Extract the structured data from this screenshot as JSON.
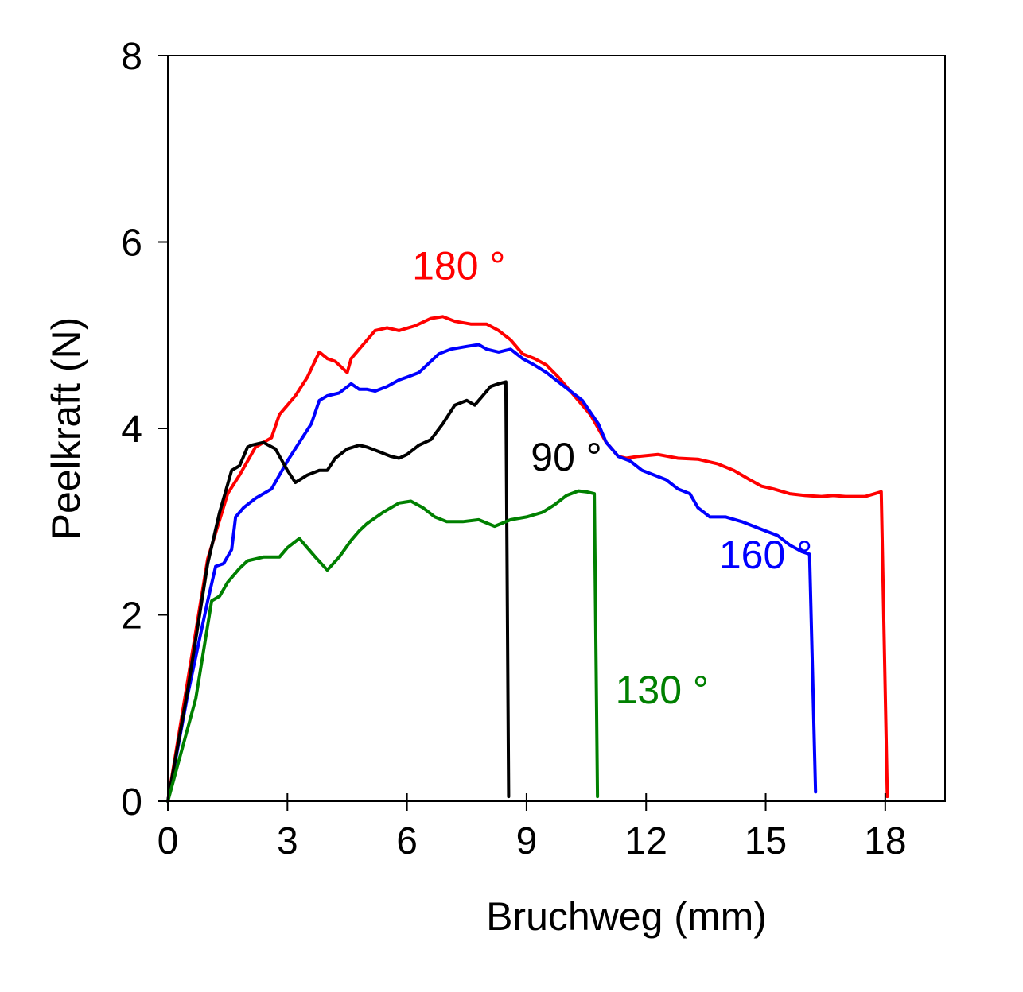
{
  "chart_data": {
    "type": "line",
    "title": "",
    "xlabel": "Bruchweg (mm)",
    "ylabel": "Peelkraft (N)",
    "xlim": [
      0,
      19.5
    ],
    "ylim": [
      0,
      8
    ],
    "xticks": [
      0,
      3,
      6,
      9,
      12,
      15,
      18
    ],
    "yticks": [
      0,
      2,
      4,
      6,
      8
    ],
    "grid": false,
    "series": [
      {
        "name": "180 °",
        "color": "#ff0000",
        "x": [
          0,
          0.5,
          1.0,
          1.5,
          1.8,
          2.2,
          2.6,
          2.8,
          3.2,
          3.5,
          3.8,
          4.0,
          4.2,
          4.5,
          4.6,
          4.9,
          5.2,
          5.5,
          5.8,
          6.2,
          6.6,
          6.9,
          7.2,
          7.6,
          8.0,
          8.3,
          8.6,
          8.9,
          9.2,
          9.5,
          9.8,
          10.2,
          10.6,
          11.0,
          11.3,
          11.5,
          11.8,
          12.3,
          12.8,
          13.3,
          13.8,
          14.2,
          14.6,
          14.9,
          15.2,
          15.6,
          16.0,
          16.4,
          16.7,
          17.0,
          17.5,
          17.9,
          18.05
        ],
        "y": [
          0,
          1.3,
          2.6,
          3.3,
          3.5,
          3.8,
          3.9,
          4.15,
          4.35,
          4.55,
          4.82,
          4.75,
          4.72,
          4.6,
          4.75,
          4.9,
          5.05,
          5.08,
          5.05,
          5.1,
          5.18,
          5.2,
          5.15,
          5.12,
          5.12,
          5.05,
          4.95,
          4.8,
          4.75,
          4.68,
          4.55,
          4.35,
          4.15,
          3.85,
          3.7,
          3.68,
          3.7,
          3.72,
          3.68,
          3.67,
          3.62,
          3.55,
          3.45,
          3.38,
          3.35,
          3.3,
          3.28,
          3.27,
          3.28,
          3.27,
          3.27,
          3.32,
          0.05
        ]
      },
      {
        "name": "160 °",
        "color": "#0000ff",
        "x": [
          0,
          0.5,
          1.0,
          1.2,
          1.4,
          1.6,
          1.7,
          1.9,
          2.2,
          2.6,
          2.8,
          3.0,
          3.3,
          3.6,
          3.8,
          4.0,
          4.3,
          4.6,
          4.8,
          5.0,
          5.2,
          5.5,
          5.8,
          6.0,
          6.3,
          6.6,
          6.8,
          7.1,
          7.5,
          7.8,
          8.0,
          8.3,
          8.6,
          8.9,
          9.2,
          9.5,
          9.8,
          10.1,
          10.4,
          10.8,
          11.0,
          11.3,
          11.6,
          11.9,
          12.2,
          12.5,
          12.8,
          13.1,
          13.3,
          13.6,
          14.0,
          14.4,
          14.7,
          15.0,
          15.3,
          15.6,
          15.9,
          16.1,
          16.25
        ],
        "y": [
          0,
          1.15,
          2.15,
          2.52,
          2.55,
          2.7,
          3.05,
          3.15,
          3.25,
          3.35,
          3.5,
          3.65,
          3.85,
          4.05,
          4.3,
          4.35,
          4.38,
          4.48,
          4.42,
          4.42,
          4.4,
          4.45,
          4.52,
          4.55,
          4.6,
          4.72,
          4.8,
          4.85,
          4.88,
          4.9,
          4.85,
          4.82,
          4.85,
          4.75,
          4.68,
          4.6,
          4.5,
          4.4,
          4.3,
          4.05,
          3.85,
          3.7,
          3.65,
          3.55,
          3.5,
          3.45,
          3.35,
          3.3,
          3.15,
          3.05,
          3.05,
          3.0,
          2.95,
          2.9,
          2.85,
          2.75,
          2.68,
          2.65,
          0.1
        ]
      },
      {
        "name": "90 °",
        "color": "#000000",
        "x": [
          0,
          0.5,
          1.0,
          1.3,
          1.6,
          1.8,
          2.0,
          2.1,
          2.4,
          2.7,
          3.0,
          3.2,
          3.5,
          3.8,
          4.0,
          4.2,
          4.5,
          4.8,
          5.0,
          5.3,
          5.6,
          5.8,
          6.0,
          6.3,
          6.6,
          6.9,
          7.2,
          7.5,
          7.7,
          7.9,
          8.1,
          8.3,
          8.48,
          8.55
        ],
        "y": [
          0,
          1.2,
          2.55,
          3.1,
          3.55,
          3.6,
          3.8,
          3.82,
          3.85,
          3.78,
          3.55,
          3.42,
          3.5,
          3.55,
          3.55,
          3.68,
          3.78,
          3.82,
          3.8,
          3.75,
          3.7,
          3.68,
          3.72,
          3.82,
          3.88,
          4.05,
          4.25,
          4.3,
          4.25,
          4.35,
          4.45,
          4.48,
          4.5,
          0.05
        ]
      },
      {
        "name": "130 °",
        "color": "#008000",
        "x": [
          0,
          0.7,
          1.1,
          1.3,
          1.5,
          1.8,
          2.0,
          2.4,
          2.8,
          3.0,
          3.3,
          3.7,
          4.0,
          4.3,
          4.6,
          4.8,
          5.0,
          5.4,
          5.8,
          6.1,
          6.4,
          6.7,
          7.0,
          7.4,
          7.8,
          8.2,
          8.6,
          9.0,
          9.4,
          9.7,
          10.0,
          10.3,
          10.5,
          10.7,
          10.78
        ],
        "y": [
          0,
          1.1,
          2.15,
          2.2,
          2.35,
          2.5,
          2.58,
          2.62,
          2.62,
          2.72,
          2.82,
          2.62,
          2.48,
          2.62,
          2.8,
          2.9,
          2.98,
          3.1,
          3.2,
          3.22,
          3.15,
          3.05,
          3.0,
          3.0,
          3.02,
          2.95,
          3.02,
          3.05,
          3.1,
          3.18,
          3.28,
          3.33,
          3.32,
          3.3,
          0.05
        ]
      }
    ],
    "annotations": [
      {
        "text": "180 °",
        "color": "#ff0000",
        "x": 7.3,
        "y": 5.6
      },
      {
        "text": "90 °",
        "color": "#000000",
        "x": 10.0,
        "y": 3.55
      },
      {
        "text": "160 °",
        "color": "#0000ff",
        "x": 15.0,
        "y": 2.5
      },
      {
        "text": "130 °",
        "color": "#008000",
        "x": 12.4,
        "y": 1.05
      }
    ]
  }
}
